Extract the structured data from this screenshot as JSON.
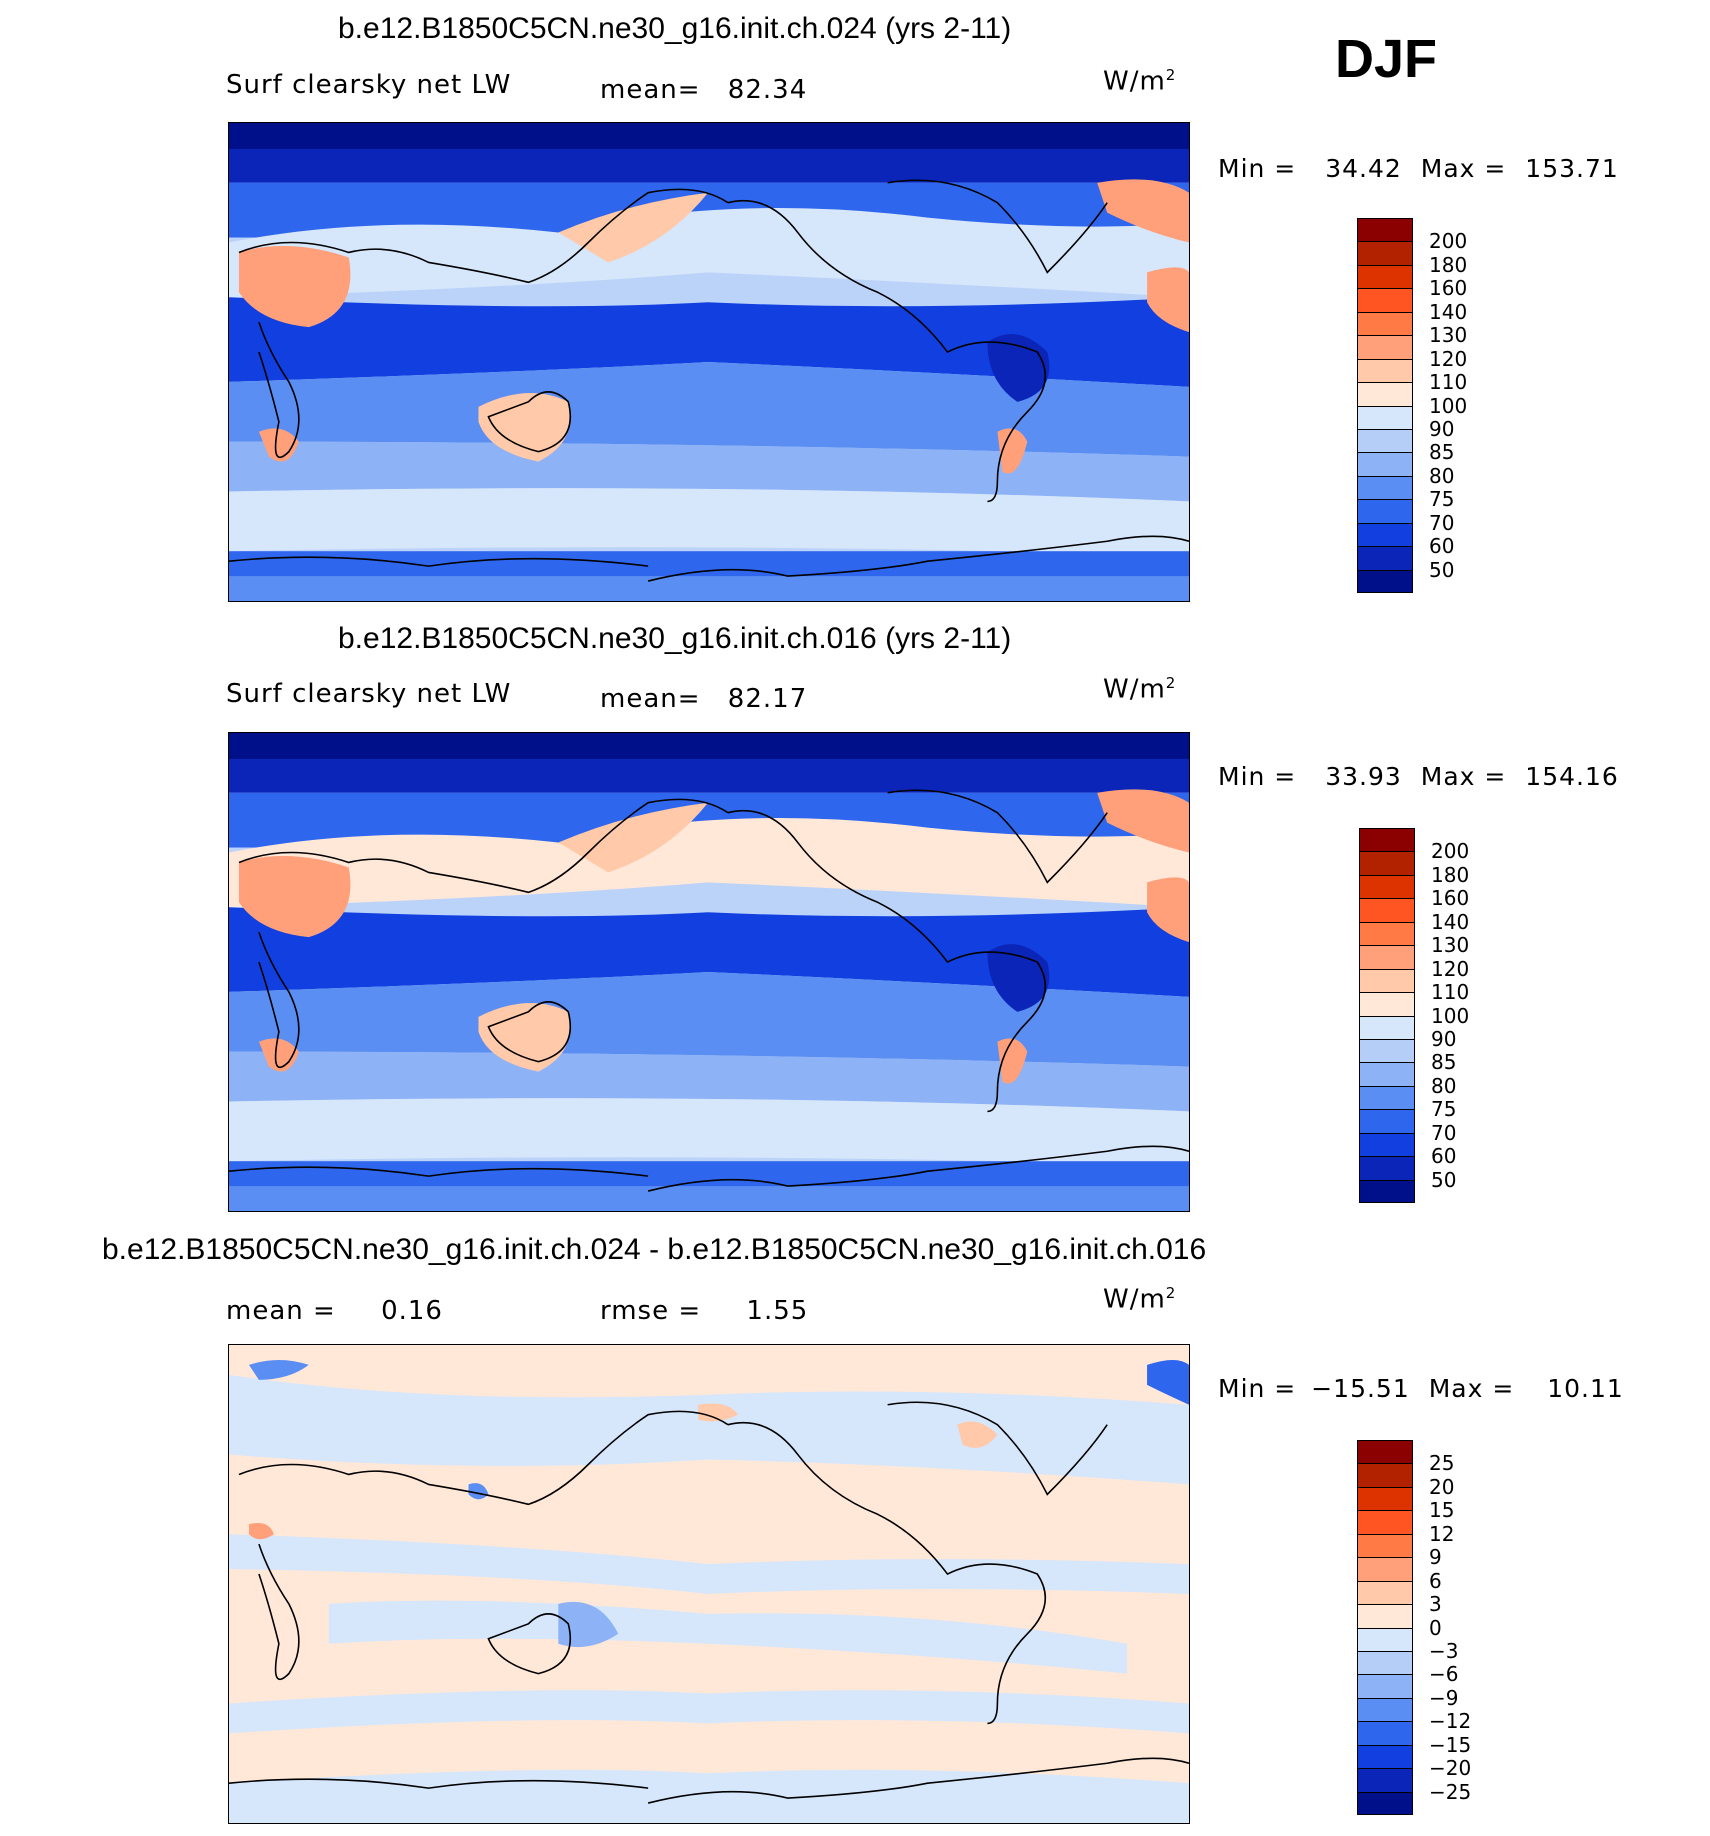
{
  "season": "DJF",
  "panels": [
    {
      "title": "b.e12.B1850C5CN.ne30_g16.init.ch.024 (yrs 2-11)",
      "left_label": "Surf clearsky net LW",
      "stat_label": "mean=",
      "stat_value": "82.34",
      "unit": "W/m",
      "unit_sup": "2",
      "min_label": "Min =",
      "min_value": "34.42",
      "max_label": "Max =",
      "max_value": "153.71",
      "colorbar": {
        "labels": [
          "200",
          "180",
          "160",
          "140",
          "130",
          "120",
          "110",
          "100",
          "90",
          "85",
          "80",
          "75",
          "70",
          "60",
          "50"
        ],
        "colors": [
          "#8b0000",
          "#b22200",
          "#dd3300",
          "#ff5522",
          "#ff7a44",
          "#ffa07a",
          "#ffc9aa",
          "#ffe8d8",
          "#d6e6fb",
          "#b5cef8",
          "#8db2f5",
          "#5b8ef2",
          "#2f66ee",
          "#1240e0",
          "#0a25b8",
          "#00108a"
        ]
      }
    },
    {
      "title": "b.e12.B1850C5CN.ne30_g16.init.ch.016 (yrs 2-11)",
      "left_label": "Surf clearsky net LW",
      "stat_label": "mean=",
      "stat_value": "82.17",
      "unit": "W/m",
      "unit_sup": "2",
      "min_label": "Min =",
      "min_value": "33.93",
      "max_label": "Max =",
      "max_value": "154.16",
      "colorbar": {
        "labels": [
          "200",
          "180",
          "160",
          "140",
          "130",
          "120",
          "110",
          "100",
          "90",
          "85",
          "80",
          "75",
          "70",
          "60",
          "50"
        ],
        "colors": [
          "#8b0000",
          "#b22200",
          "#dd3300",
          "#ff5522",
          "#ff7a44",
          "#ffa07a",
          "#ffc9aa",
          "#ffe8d8",
          "#d6e6fb",
          "#b5cef8",
          "#8db2f5",
          "#5b8ef2",
          "#2f66ee",
          "#1240e0",
          "#0a25b8",
          "#00108a"
        ]
      }
    },
    {
      "title": "b.e12.B1850C5CN.ne30_g16.init.ch.024 - b.e12.B1850C5CN.ne30_g16.init.ch.016",
      "left_label": "mean =",
      "left_value": "0.16",
      "stat_label": "rmse =",
      "stat_value": "1.55",
      "unit": "W/m",
      "unit_sup": "2",
      "min_label": "Min =",
      "min_value": "−15.51",
      "max_label": "Max =",
      "max_value": "10.11",
      "colorbar": {
        "labels": [
          "25",
          "20",
          "15",
          "12",
          "9",
          "6",
          "3",
          "0",
          "−3",
          "−6",
          "−9",
          "−12",
          "−15",
          "−20",
          "−25"
        ],
        "colors": [
          "#8b0000",
          "#b22200",
          "#dd3300",
          "#ff5522",
          "#ff7a44",
          "#ffa07a",
          "#ffc9aa",
          "#ffe8d8",
          "#d6e6fb",
          "#b5cef8",
          "#8db2f5",
          "#5b8ef2",
          "#2f66ee",
          "#1240e0",
          "#0a25b8",
          "#00108a"
        ]
      }
    }
  ]
}
